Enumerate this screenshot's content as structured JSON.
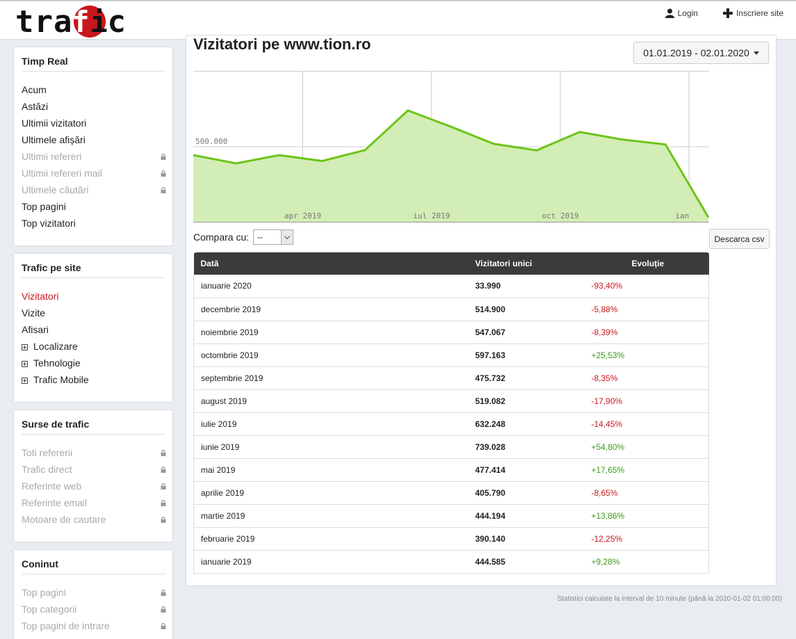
{
  "header": {
    "logo_text": "trafic",
    "login": "Login",
    "register": "Inscriere site"
  },
  "sidebar": {
    "timp_real": {
      "title": "Timp Real",
      "items": [
        {
          "label": "Acum",
          "locked": false
        },
        {
          "label": "Astăzi",
          "locked": false
        },
        {
          "label": "Ultimii vizitatori",
          "locked": false
        },
        {
          "label": "Ultimele afișări",
          "locked": false
        },
        {
          "label": "Ultimii refereri",
          "locked": true
        },
        {
          "label": "Ultimii refereri mail",
          "locked": true
        },
        {
          "label": "Ultimele căutări",
          "locked": true
        },
        {
          "label": "Top pagini",
          "locked": false
        },
        {
          "label": "Top vizitatori",
          "locked": false
        }
      ]
    },
    "trafic": {
      "title": "Trafic pe site",
      "items": [
        {
          "label": "Vizitatori",
          "active": true
        },
        {
          "label": "Vizite"
        },
        {
          "label": "Afisari"
        },
        {
          "label": "Localizare",
          "expandable": true
        },
        {
          "label": "Tehnologie",
          "expandable": true
        },
        {
          "label": "Trafic Mobile",
          "expandable": true
        }
      ]
    },
    "surse": {
      "title": "Surse de trafic",
      "items": [
        {
          "label": "Toti refererii",
          "locked": true
        },
        {
          "label": "Trafic direct",
          "locked": true
        },
        {
          "label": "Referinte web",
          "locked": true
        },
        {
          "label": "Referinte email",
          "locked": true
        },
        {
          "label": "Motoare de cautare",
          "locked": true
        }
      ]
    },
    "continut": {
      "title": "Coninut",
      "items": [
        {
          "label": "Top pagini",
          "locked": true
        },
        {
          "label": "Top categorii",
          "locked": true
        },
        {
          "label": "Top pagini de intrare",
          "locked": true
        }
      ]
    }
  },
  "main": {
    "title": "Vizitatori pe www.tion.ro",
    "date_range": "01.01.2019 - 02.01.2020",
    "compare_label": "Compara cu:",
    "compare_value": "--",
    "csv_button": "Descarca csv",
    "table": {
      "headers": [
        "Dată",
        "Vizitatori unici",
        "Evoluție"
      ],
      "rows": [
        {
          "date": "ianuarie 2020",
          "visitors": "33.990",
          "evolution": "-93,40%",
          "trend": "neg"
        },
        {
          "date": "decembrie 2019",
          "visitors": "514.900",
          "evolution": "-5,88%",
          "trend": "neg"
        },
        {
          "date": "noiembrie 2019",
          "visitors": "547.067",
          "evolution": "-8,39%",
          "trend": "neg"
        },
        {
          "date": "octombrie 2019",
          "visitors": "597.163",
          "evolution": "+25,53%",
          "trend": "pos"
        },
        {
          "date": "septembrie 2019",
          "visitors": "475.732",
          "evolution": "-8,35%",
          "trend": "neg"
        },
        {
          "date": "august 2019",
          "visitors": "519.082",
          "evolution": "-17,90%",
          "trend": "neg"
        },
        {
          "date": "iulie 2019",
          "visitors": "632.248",
          "evolution": "-14,45%",
          "trend": "neg"
        },
        {
          "date": "iunie 2019",
          "visitors": "739.028",
          "evolution": "+54,80%",
          "trend": "pos"
        },
        {
          "date": "mai 2019",
          "visitors": "477.414",
          "evolution": "+17,65%",
          "trend": "pos"
        },
        {
          "date": "aprilie 2019",
          "visitors": "405.790",
          "evolution": "-8,65%",
          "trend": "neg"
        },
        {
          "date": "martie 2019",
          "visitors": "444.194",
          "evolution": "+13,86%",
          "trend": "pos"
        },
        {
          "date": "februarie 2019",
          "visitors": "390.140",
          "evolution": "-12,25%",
          "trend": "neg"
        },
        {
          "date": "ianuarie 2019",
          "visitors": "444.585",
          "evolution": "+9,28%",
          "trend": "pos"
        }
      ]
    },
    "footnote": "Statistici calculate la interval de 10 minute (până la 2020-01-02 01:00:00)"
  },
  "colors": {
    "brand_red": "#c8171d",
    "positive": "#3c9a18",
    "chart_line": "#6cc417",
    "chart_fill": "#d2edb5"
  },
  "chart_data": {
    "type": "area",
    "x": [
      "2019-01",
      "2019-02",
      "2019-03",
      "2019-04",
      "2019-05",
      "2019-06",
      "2019-07",
      "2019-08",
      "2019-09",
      "2019-10",
      "2019-11",
      "2019-12",
      "2020-01"
    ],
    "values": [
      444585,
      390140,
      444194,
      405790,
      477414,
      739028,
      632248,
      519082,
      475732,
      597163,
      547067,
      514900,
      33990
    ],
    "tick_labels": [
      "apr 2019",
      "iul 2019",
      "oct 2019",
      "ian"
    ],
    "y_tick_label": "500.000",
    "ylim": [
      0,
      1000000
    ],
    "grid": true
  }
}
